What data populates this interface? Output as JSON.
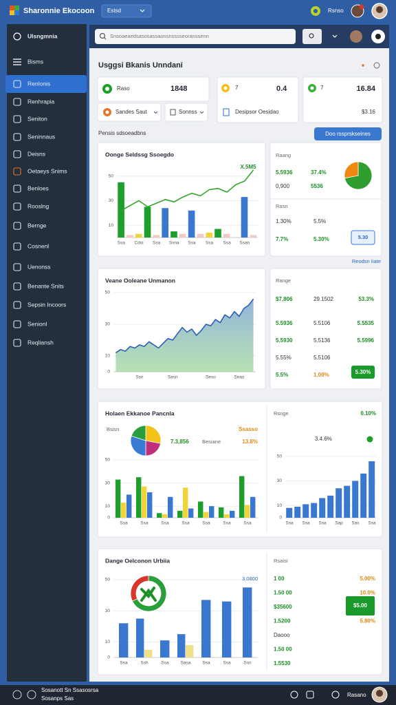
{
  "header": {
    "app_name": "Sharonnie Ekocoon",
    "selector": "Estsd",
    "user": "Rsnso"
  },
  "search": {
    "placeholder": "Snsoaeaedsasosassaonsnsssseoranssenn"
  },
  "sidebar": {
    "title": "Ulsngmnia",
    "active": 1,
    "items": [
      "Bisms",
      "Renlonis",
      "Renhrapia",
      "Seniton",
      "Seninnaus",
      "Deisns",
      "Oetaeys Snims",
      "Benloes",
      "Rooslng",
      "Bernge",
      "Cosnenl",
      "Uenonss",
      "Benante Snits",
      "Sepsin Incoors",
      "Senionl",
      "Reqliansh"
    ]
  },
  "page": {
    "title": "Usggsi Bkanis Unndani",
    "section_label": "Pensis sdsoeadbns",
    "section_button": "Doo rssprskseines",
    "link": "Reodsn Iiate"
  },
  "kpis": [
    {
      "label": "Raso",
      "value": "1848"
    },
    {
      "label": "7",
      "value": "0.4"
    },
    {
      "label": "7",
      "value": "16.84"
    }
  ],
  "filters": [
    "Sandes Saut",
    "Sonnss"
  ],
  "summary": {
    "label": "Desipsor Oesidao",
    "value": "$3.16"
  },
  "panels": [
    {
      "chart": {
        "title": "Oonge Seldssg Ssoegdo",
        "ylim": [
          0,
          60
        ],
        "yticks": [
          10,
          30,
          50
        ],
        "annotation": "X.5M5",
        "categories": [
          "Ssa",
          null,
          "Cdsi",
          null,
          "Ssa",
          null,
          "Ssna",
          null,
          "Ssa",
          null,
          "Ssa",
          null,
          "Ssa",
          null,
          "Ssan",
          null
        ],
        "series": [
          {
            "type": "bar",
            "color": "#1e9e2a",
            "values": [
              45,
              null,
              null,
              25,
              null,
              null,
              5,
              null,
              null,
              null,
              null,
              7,
              null,
              null,
              null,
              null
            ]
          },
          {
            "type": "bar",
            "color": "#3a78d0",
            "values": [
              null,
              null,
              null,
              null,
              null,
              24,
              null,
              null,
              22,
              null,
              null,
              null,
              null,
              null,
              33,
              null
            ]
          },
          {
            "type": "bar",
            "color": "#f0d43a",
            "values": [
              null,
              null,
              3,
              null,
              null,
              null,
              null,
              null,
              null,
              null,
              4,
              null,
              null,
              null,
              null,
              null
            ]
          },
          {
            "type": "bar",
            "color": "#f2c9c4",
            "values": [
              null,
              2,
              null,
              null,
              2,
              null,
              null,
              3,
              null,
              3,
              null,
              null,
              3,
              null,
              null,
              2
            ]
          },
          {
            "type": "line",
            "color": "#36a52c",
            "values": [
              22,
              26,
              30,
              25,
              28,
              31,
              29,
              33,
              36,
              34,
              39,
              40,
              37,
              43,
              46,
              55
            ]
          }
        ]
      },
      "side": {
        "title": "Raang",
        "rows": [
          [
            "5.5936",
            "37.4%"
          ],
          [
            "0,900",
            "5536"
          ]
        ],
        "pie": {
          "values": [
            72,
            28
          ],
          "colors": [
            "#2f9e2f",
            "#f0870f"
          ]
        },
        "title2": "Rasn",
        "rows2": [
          [
            "1.30%",
            "5.5%"
          ],
          [
            "7.7%",
            "5.30%"
          ]
        ],
        "button": "5.30"
      }
    },
    {
      "chart": {
        "title": "Veane Ooleane Unmanon",
        "ylim": [
          0,
          50
        ],
        "yticks": [
          0,
          10,
          30,
          50
        ],
        "categories": [
          null,
          null,
          null,
          null,
          null,
          "Ssn",
          null,
          null,
          null,
          null,
          null,
          null,
          "Sasn",
          null,
          null,
          null,
          null,
          null,
          null,
          null,
          "Seso",
          null,
          null,
          null,
          null,
          null,
          "Seao",
          null,
          null,
          null
        ],
        "series": [
          {
            "type": "area",
            "color": "#2c5fb0",
            "values": [
              12,
              14,
              13,
              16,
              15,
              17,
              16,
              19,
              17,
              15,
              18,
              21,
              20,
              24,
              28,
              25,
              27,
              23,
              26,
              30,
              29,
              33,
              31,
              36,
              34,
              38,
              35,
              40,
              42,
              46
            ]
          }
        ]
      },
      "side": {
        "title": "Range",
        "rows": [
          [
            "$7,806",
            "29.1502",
            "53.3%"
          ],
          [
            "5.5936",
            "5.5106",
            "5.5535"
          ],
          [
            "5.5930",
            "5.5136",
            "5.5996"
          ],
          [
            "5.55%",
            "5.5106"
          ],
          [
            "5.5%",
            "1.00%"
          ]
        ],
        "button": "5.30%"
      }
    },
    {
      "chart": {
        "title": "Holaen Ekkanoe Pancnla",
        "legend_label": "Bsisn",
        "corner": "Ssasso",
        "pie": {
          "values": [
            28,
            22,
            30,
            20
          ],
          "colors": [
            "#f2c21b",
            "#c0307a",
            "#3a7bd5",
            "#2a9e3a"
          ]
        },
        "stats": [
          "7.3,856",
          "Besiane",
          "13.8%"
        ],
        "ylim": [
          0,
          50
        ],
        "yticks": [
          0,
          10,
          30,
          50
        ],
        "categories": [
          "Ssa",
          "Ssa",
          "Ssa",
          "Ssa",
          "Ssa",
          "Ssa",
          "Ssa"
        ],
        "series": [
          {
            "type": "bar",
            "color": "#1e9e2a",
            "values": [
              33,
              35,
              4,
              6,
              14,
              9,
              36
            ]
          },
          {
            "type": "bar",
            "color": "#f0d43a",
            "values": [
              13,
              27,
              3,
              26,
              5,
              3,
              11
            ]
          },
          {
            "type": "bar",
            "color": "#3a78d0",
            "values": [
              20,
              22,
              18,
              8,
              10,
              6,
              18
            ]
          }
        ]
      },
      "side": {
        "title": "Rsnge",
        "value": "0.10%",
        "label": "3.4.6%",
        "chart": {
          "ylim": [
            0,
            60
          ],
          "yticks": [
            0,
            10,
            30,
            50
          ],
          "categories": [
            "Ssa",
            null,
            "Ssa",
            null,
            "Ssa",
            null,
            "Sap",
            null,
            "Sas",
            null,
            "Ssa"
          ],
          "series": [
            {
              "type": "bar",
              "color": "#3a78d0",
              "values": [
                8,
                9,
                11,
                12,
                16,
                18,
                24,
                26,
                30,
                36,
                46
              ]
            }
          ]
        }
      }
    },
    {
      "chart": {
        "title": "Dange Oelconon Urbiia",
        "corner_value": "3.0800",
        "donut": {
          "values": [
            68,
            32
          ],
          "colors": [
            "#2a9e3a",
            "#d9362b"
          ]
        },
        "ylim": [
          0,
          50
        ],
        "yticks": [
          0,
          10,
          30,
          50
        ],
        "categories": [
          "Ssa",
          "Ssh",
          "Ssa",
          "Sasa",
          "Ssa",
          "Ssa",
          "Ssn"
        ],
        "series": [
          {
            "type": "bar",
            "color": "#3a78d0",
            "values": [
              22,
              25,
              11,
              15,
              37,
              36,
              45
            ]
          },
          {
            "type": "bar",
            "color": "#f0e08a",
            "values": [
              null,
              5,
              null,
              8,
              null,
              null,
              null
            ]
          }
        ]
      },
      "side": {
        "title": "Rsaisi",
        "rows": [
          [
            "1 00",
            "5.00%"
          ],
          [
            "1.50 00",
            "10.0%"
          ],
          [
            "$35600"
          ],
          [
            "1.5200",
            "5.80%"
          ],
          [
            "Daooo"
          ],
          [
            "1.50 00"
          ],
          [
            "1.5530"
          ]
        ],
        "highlight": "$5.00"
      }
    }
  ],
  "footer": {
    "left": "Sosanott Sn Ssasosrsa",
    "left2": "Sosanps Sas",
    "user": "Rasano"
  }
}
